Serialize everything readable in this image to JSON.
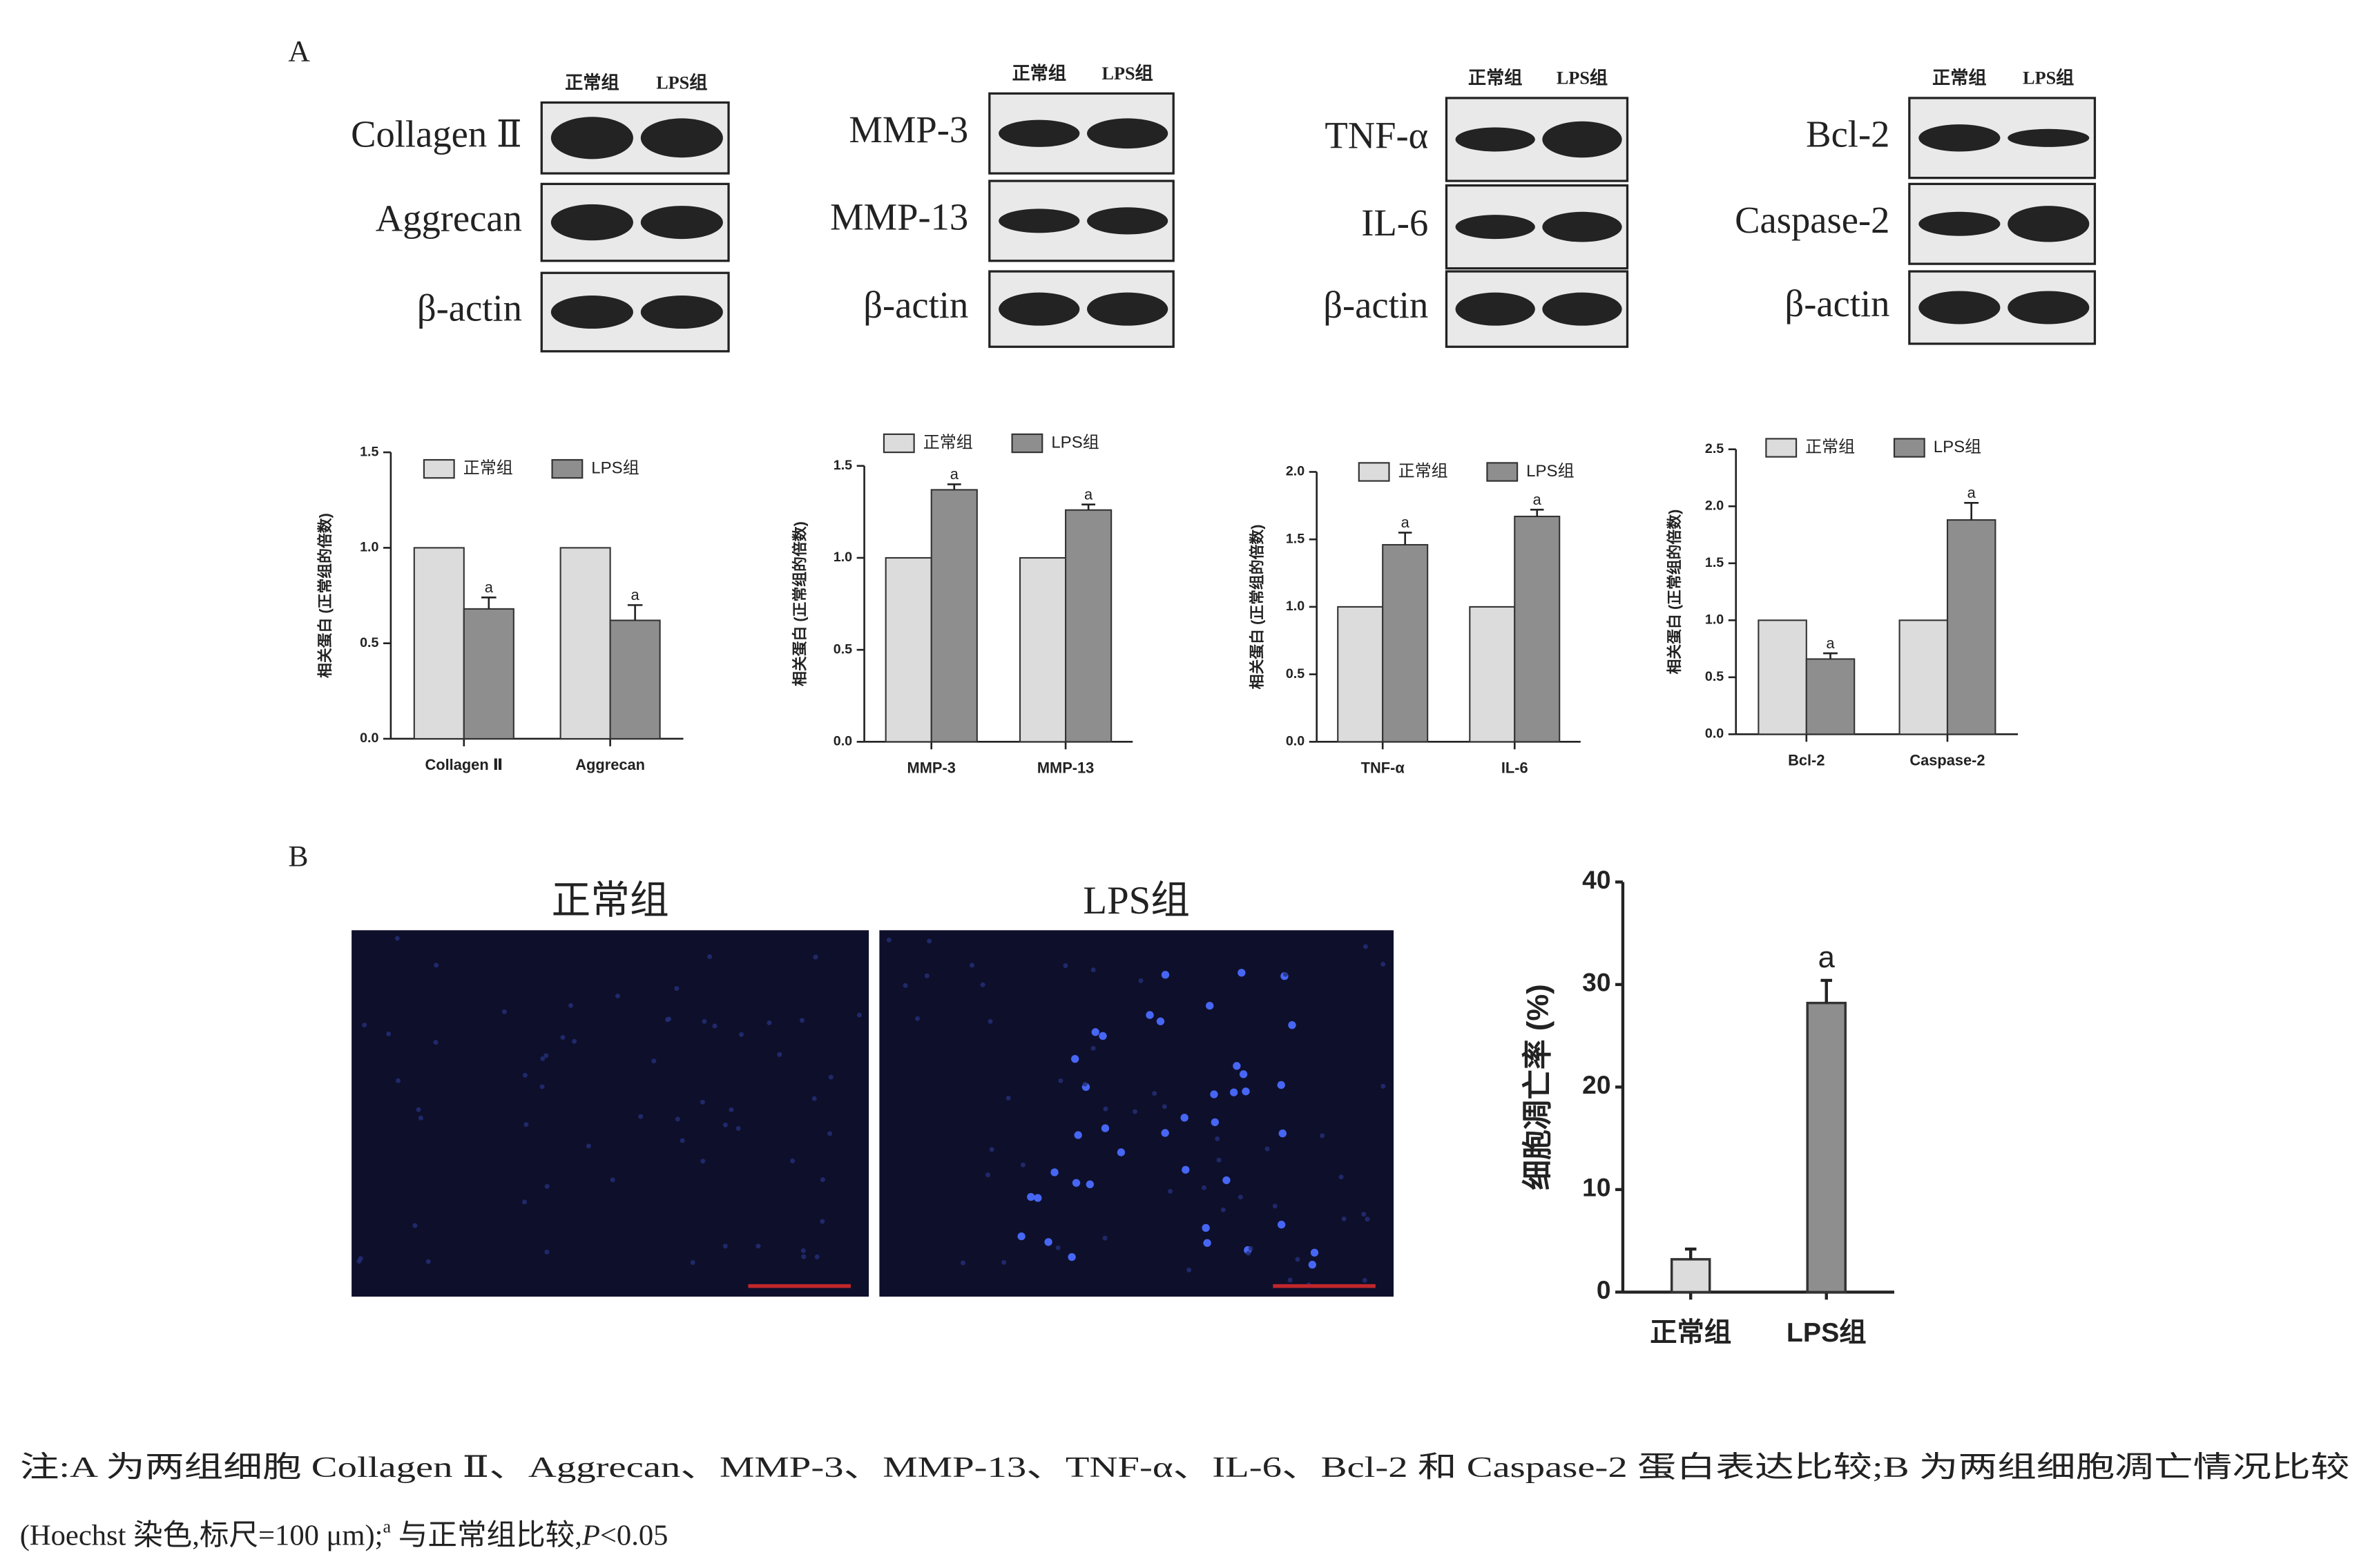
{
  "panels": [
    "A",
    "B"
  ],
  "blots": [
    {
      "lanes": [
        "正常组",
        "LPS组"
      ],
      "proteins": [
        "Collagen Ⅱ",
        "Aggrecan",
        "β-actin"
      ]
    },
    {
      "lanes": [
        "正常组",
        "LPS组"
      ],
      "proteins": [
        "MMP-3",
        "MMP-13",
        "β-actin"
      ]
    },
    {
      "lanes": [
        "正常组",
        "LPS组"
      ],
      "proteins": [
        "TNF-α",
        "IL-6",
        "β-actin"
      ]
    },
    {
      "lanes": [
        "正常组",
        "LPS组"
      ],
      "proteins": [
        "Bcl-2",
        "Caspase-2",
        "β-actin"
      ]
    }
  ],
  "chart_data": [
    {
      "type": "bar",
      "ylabel": "相关蛋白 (正常组的倍数)",
      "categories": [
        "Collagen Ⅱ",
        "Aggrecan"
      ],
      "legend": "top",
      "series": [
        {
          "name": "正常组",
          "color": "#dcdcdc",
          "values": [
            1.0,
            1.0
          ]
        },
        {
          "name": "LPS组",
          "color": "#8e8e8e",
          "values": [
            0.68,
            0.62
          ],
          "errors": [
            0.06,
            0.08
          ],
          "significance": [
            "a",
            "a"
          ]
        }
      ],
      "ylim": [
        0,
        1.5
      ],
      "yticks": [
        {
          "value": 0,
          "label": "0.0"
        },
        0.5,
        {
          "value": 1,
          "label": "1.0"
        },
        1.5
      ]
    },
    {
      "type": "bar",
      "ylabel": "相关蛋白 (正常组的倍数)",
      "categories": [
        "MMP-3",
        "MMP-13"
      ],
      "legend": "top",
      "series": [
        {
          "name": "正常组",
          "color": "#dcdcdc",
          "values": [
            1.0,
            1.0
          ]
        },
        {
          "name": "LPS组",
          "color": "#8e8e8e",
          "values": [
            1.37,
            1.26
          ],
          "errors": [
            0.03,
            0.03
          ],
          "significance": [
            "a",
            "a"
          ]
        }
      ],
      "ylim": [
        0,
        1.5
      ],
      "yticks": [
        {
          "value": 0,
          "label": "0.0"
        },
        0.5,
        {
          "value": 1,
          "label": "1.0"
        },
        1.5
      ]
    },
    {
      "type": "bar",
      "ylabel": "相关蛋白 (正常组的倍数)",
      "categories": [
        "TNF-α",
        "IL-6"
      ],
      "legend": "top",
      "series": [
        {
          "name": "正常组",
          "color": "#dcdcdc",
          "values": [
            1.0,
            1.0
          ]
        },
        {
          "name": "LPS组",
          "color": "#8e8e8e",
          "values": [
            1.46,
            1.67
          ],
          "errors": [
            0.09,
            0.05
          ],
          "significance": [
            "a",
            "a"
          ]
        }
      ],
      "ylim": [
        0,
        2
      ],
      "yticks": [
        {
          "value": 0,
          "label": "0.0"
        },
        0.5,
        {
          "value": 1,
          "label": "1.0"
        },
        1.5,
        {
          "value": 2,
          "label": "2.0"
        }
      ]
    },
    {
      "type": "bar",
      "ylabel": "相关蛋白 (正常组的倍数)",
      "categories": [
        "Bcl-2",
        "Caspase-2"
      ],
      "legend": "top",
      "series": [
        {
          "name": "正常组",
          "color": "#dcdcdc",
          "values": [
            1.0,
            1.0
          ]
        },
        {
          "name": "LPS组",
          "color": "#8e8e8e",
          "values": [
            0.66,
            1.88
          ],
          "errors": [
            0.05,
            0.15
          ],
          "significance": [
            "a",
            "a"
          ]
        }
      ],
      "ylim": [
        0,
        2.5
      ],
      "yticks": [
        {
          "value": 0,
          "label": "0.0"
        },
        0.5,
        {
          "value": 1,
          "label": "1.0"
        },
        1.5,
        {
          "value": 2,
          "label": "2.0"
        },
        2.5
      ]
    },
    {
      "type": "bar",
      "ylabel": "细胞凋亡率 (%)",
      "categories": [
        "正常组",
        "LPS组"
      ],
      "values": [
        3.2,
        28.2
      ],
      "errors": [
        1.0,
        2.2
      ],
      "colors": [
        "#dcdcdc",
        "#8e8e8e"
      ],
      "significance": [
        null,
        "a"
      ],
      "ylim": [
        0,
        40
      ],
      "yticks": [
        0,
        10,
        20,
        30,
        40
      ]
    }
  ],
  "fluorescence": {
    "labels": [
      "正常组",
      "LPS组"
    ]
  },
  "caption": {
    "line1": [
      {
        "text": "注:A 为两组细胞 Collagen Ⅱ、Aggrecan、MMP-3、MMP-13、TNF-α、IL-6、Bcl-2 和 Caspase-2 蛋白表达比较;B 为两组细胞凋亡情况比较"
      }
    ],
    "line2": [
      {
        "text": "(Hoechst 染色,标尺=100 μm);"
      },
      {
        "text": "a",
        "style": "sup"
      },
      {
        "text": " 与正常组比较,"
      },
      {
        "text": "P",
        "style": "italic"
      },
      {
        "text": "<0.05"
      }
    ]
  }
}
